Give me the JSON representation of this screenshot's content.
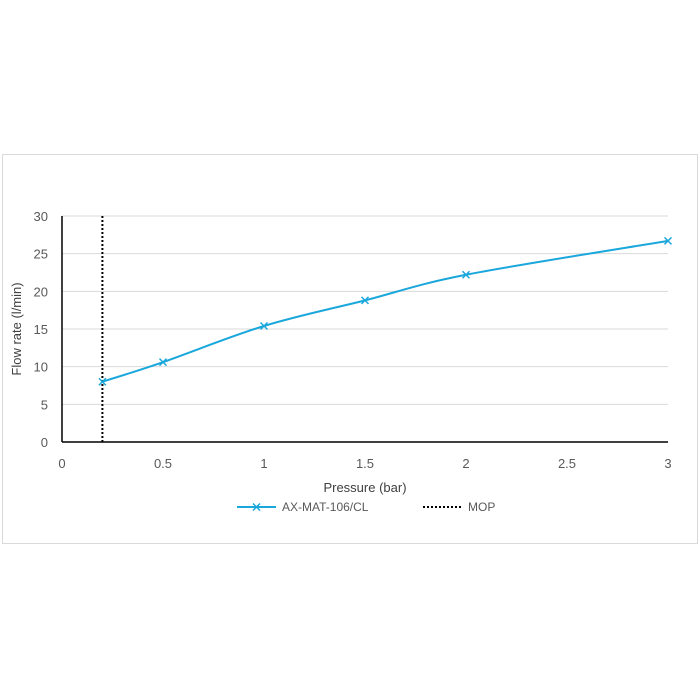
{
  "colors": {
    "series": "#1aa7db",
    "mop": "#000000",
    "grid": "#d9d9d9",
    "axis": "#000000",
    "text": "#595959"
  },
  "chart_data": {
    "type": "line",
    "xlabel": "Pressure (bar)",
    "ylabel": "Flow rate (l/min)",
    "xlim": [
      0,
      3
    ],
    "ylim": [
      0,
      30
    ],
    "x_ticks": [
      0,
      0.5,
      1,
      1.5,
      2,
      2.5,
      3
    ],
    "x_tick_labels": [
      "0",
      "0.5",
      "1",
      "1.5",
      "2",
      "2.5",
      "3"
    ],
    "y_ticks": [
      0,
      5,
      10,
      15,
      20,
      25,
      30
    ],
    "y_tick_labels": [
      "0",
      "5",
      "10",
      "15",
      "20",
      "25",
      "30"
    ],
    "grid": "horizontal",
    "legend_position": "bottom",
    "series": [
      {
        "name": "AX-MAT-106/CL",
        "style": "solid-with-x-markers",
        "x": [
          0.2,
          0.5,
          1,
          1.5,
          2,
          3
        ],
        "y": [
          8.0,
          10.6,
          15.4,
          18.8,
          22.2,
          26.7
        ]
      },
      {
        "name": "MOP",
        "style": "dotted-vertical",
        "x": [
          0.2,
          0.2
        ],
        "y": [
          0,
          30
        ]
      }
    ]
  }
}
